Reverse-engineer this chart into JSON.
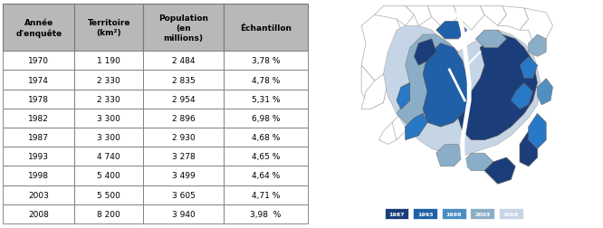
{
  "headers": [
    "Année\nd'enquête",
    "Territoire\n(km²)",
    "Population\n(en\nmillions)",
    "Échantillon"
  ],
  "rows": [
    [
      "1970",
      "1 190",
      "2 484",
      "3,78 %"
    ],
    [
      "1974",
      "2 330",
      "2 835",
      "4,78 %"
    ],
    [
      "1978",
      "2 330",
      "2 954",
      "5,31 %"
    ],
    [
      "1982",
      "3 300",
      "2 896",
      "6,98 %"
    ],
    [
      "1987",
      "3 300",
      "2 930",
      "4,68 %"
    ],
    [
      "1993",
      "4 740",
      "3 278",
      "4,65 %"
    ],
    [
      "1998",
      "5 400",
      "3 499",
      "4,64 %"
    ],
    [
      "2003",
      "5 500",
      "3 605",
      "4,71 %"
    ],
    [
      "2008",
      "8 200",
      "3 940",
      "3,98  %"
    ]
  ],
  "header_bg": "#b8b8b8",
  "header_text": "#000000",
  "border_color": "#777777",
  "legend_labels": [
    "1987",
    "1993",
    "1998",
    "2003",
    "2008"
  ],
  "legend_colors": [
    "#1b3d7a",
    "#2060a8",
    "#4a8ec2",
    "#8aaec8",
    "#c5d5e5"
  ],
  "dark_blue": "#1b3d7a",
  "med_blue": "#2060a8",
  "bright_blue": "#2878c8",
  "light_blue": "#5090c0",
  "pale_blue": "#8aaec8",
  "very_pale": "#c5d5e5",
  "white": "#ffffff",
  "fig_bg": "#ffffff",
  "map_bg": "#ffffff",
  "outline_color": "#cccccc"
}
